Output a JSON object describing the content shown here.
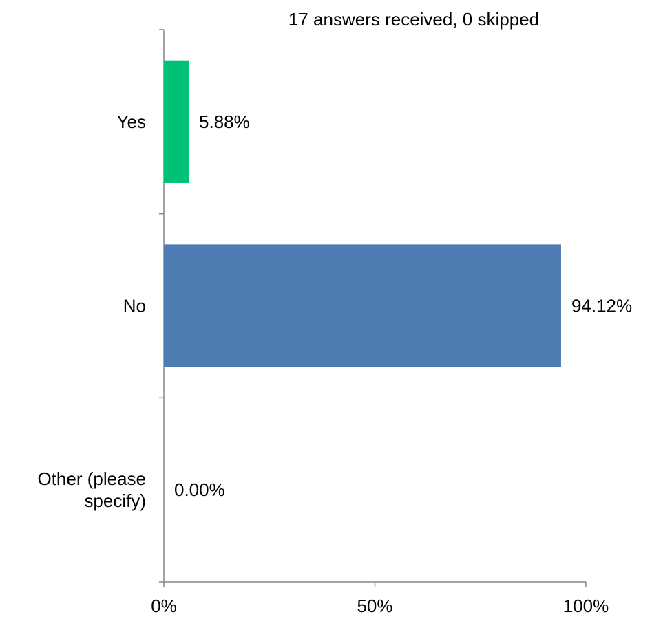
{
  "chart_data": {
    "type": "bar",
    "orientation": "horizontal",
    "subtitle": "17 answers received, 0 skipped",
    "categories": [
      "Yes",
      "No",
      "Other (please specify)"
    ],
    "category_label_lines": [
      [
        "Yes"
      ],
      [
        "No"
      ],
      [
        "Other (please",
        "specify)"
      ]
    ],
    "values": [
      5.88,
      94.12,
      0.0
    ],
    "value_labels": [
      "5.88%",
      "94.12%",
      "0.00%"
    ],
    "bar_colors": [
      "#00c274",
      "#4f7cb3",
      "#4f7cb3"
    ],
    "xlim": [
      0,
      100
    ],
    "x_ticks": [
      0,
      50,
      100
    ],
    "x_tick_labels": [
      "0%",
      "50%",
      "100%"
    ],
    "grid": false,
    "legend": "none"
  }
}
